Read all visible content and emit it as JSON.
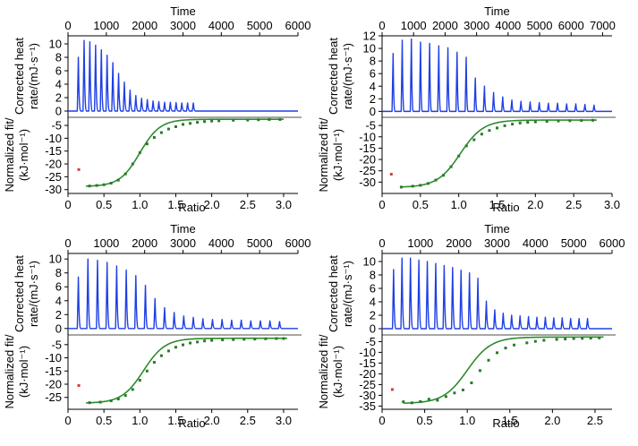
{
  "chart_data": [
    {
      "type": "line",
      "panel": "top-left",
      "top_axis_title": "Time",
      "time_ticks": [
        0,
        1000,
        2000,
        3000,
        4000,
        5000,
        6000
      ],
      "time_range": [
        0,
        6000
      ],
      "upper_ylabel": [
        "Corrected heat",
        "rate/(mJ·s⁻¹)"
      ],
      "upper_ylim": [
        -0.8,
        11.2
      ],
      "upper_yticks": [
        0,
        2,
        4,
        6,
        8,
        10
      ],
      "injection_times": [
        270,
        420,
        570,
        720,
        870,
        1020,
        1170,
        1320,
        1470,
        1620,
        1770,
        1920,
        2070,
        2220,
        2370,
        2520,
        2670,
        2820,
        2970,
        3120,
        3270
      ],
      "peak_heights": [
        8.0,
        10.5,
        10.3,
        9.8,
        9.1,
        8.3,
        7.2,
        5.6,
        4.3,
        3.1,
        2.3,
        1.9,
        1.7,
        1.5,
        1.4,
        1.3,
        1.3,
        1.25,
        1.2,
        1.2,
        1.2
      ],
      "lower_ylabel": [
        "Normalized fit/",
        "(kJ·mol⁻¹)"
      ],
      "lower_ylim": [
        -31.5,
        -1.5
      ],
      "lower_yticks": [
        -30,
        -25,
        -20,
        -15,
        -10,
        -5
      ],
      "xlabel": "Ratio",
      "xlim": [
        0,
        3.2
      ],
      "xticks": [
        0,
        0.5,
        1.0,
        1.5,
        2.0,
        2.5,
        3.0
      ],
      "first_point": {
        "x": 0.15,
        "y": -22.2
      },
      "fit": {
        "low": -28.8,
        "high": -2.6,
        "mid": 1.0,
        "width": 0.14
      },
      "data_points": [
        [
          0.3,
          -28.6
        ],
        [
          0.4,
          -28.4
        ],
        [
          0.5,
          -28.1
        ],
        [
          0.6,
          -27.5
        ],
        [
          0.7,
          -26.3
        ],
        [
          0.8,
          -23.9
        ],
        [
          0.9,
          -20.0
        ],
        [
          1.0,
          -15.6
        ],
        [
          1.1,
          -12.2
        ],
        [
          1.2,
          -9.7
        ],
        [
          1.3,
          -7.8
        ],
        [
          1.4,
          -6.4
        ],
        [
          1.5,
          -5.5
        ],
        [
          1.6,
          -4.6
        ],
        [
          1.7,
          -4.2
        ],
        [
          1.8,
          -3.8
        ],
        [
          1.9,
          -3.5
        ],
        [
          2.0,
          -3.3
        ],
        [
          2.1,
          -3.2
        ],
        [
          2.3,
          -3.0
        ],
        [
          2.5,
          -2.9
        ],
        [
          2.65,
          -2.8
        ],
        [
          2.8,
          -2.7
        ],
        [
          2.95,
          -2.7
        ]
      ]
    },
    {
      "type": "line",
      "panel": "top-right",
      "top_axis_title": "Time",
      "time_ticks": [
        0,
        1000,
        2000,
        3000,
        4000,
        5000,
        6000,
        7000
      ],
      "time_range": [
        0,
        7300
      ],
      "upper_ylabel": [
        "Corrected heat",
        "rate/(mJ·s⁻¹)"
      ],
      "upper_ylim": [
        -0.8,
        12.0
      ],
      "upper_yticks": [
        0,
        2,
        4,
        6,
        8,
        10,
        12
      ],
      "injection_times": [
        350,
        640,
        930,
        1220,
        1510,
        1800,
        2090,
        2380,
        2670,
        2960,
        3250,
        3540,
        3830,
        4120,
        4410,
        4700,
        4990,
        5280,
        5570,
        5860,
        6150,
        6440,
        6730
      ],
      "peak_heights": [
        9.2,
        11.3,
        11.5,
        11.0,
        10.8,
        10.4,
        10.1,
        9.4,
        8.6,
        5.3,
        4.0,
        3.0,
        2.3,
        1.8,
        1.6,
        1.5,
        1.4,
        1.3,
        1.3,
        1.2,
        1.2,
        1.1,
        1.0
      ],
      "lower_ylabel": [
        "Normalized fit/",
        "(kJ·mol⁻¹)"
      ],
      "lower_ylim": [
        -35,
        -1
      ],
      "lower_yticks": [
        -30,
        -25,
        -20,
        -15,
        -10,
        -5
      ],
      "xlabel": "Ratio",
      "xlim": [
        0,
        3.0
      ],
      "xticks": [
        0,
        0.5,
        1.0,
        1.5,
        2.0,
        2.5,
        3.0
      ],
      "first_point": {
        "x": 0.12,
        "y": -26.5
      },
      "fit": {
        "low": -32.3,
        "high": -2.6,
        "mid": 1.02,
        "width": 0.15
      },
      "data_points": [
        [
          0.25,
          -32.2
        ],
        [
          0.4,
          -31.8
        ],
        [
          0.5,
          -31.4
        ],
        [
          0.6,
          -30.6
        ],
        [
          0.7,
          -29.1
        ],
        [
          0.8,
          -27.0
        ],
        [
          0.9,
          -23.2
        ],
        [
          1.0,
          -18.5
        ],
        [
          1.1,
          -14.0
        ],
        [
          1.2,
          -11.3
        ],
        [
          1.3,
          -8.8
        ],
        [
          1.4,
          -7.2
        ],
        [
          1.5,
          -6.1
        ],
        [
          1.6,
          -5.1
        ],
        [
          1.7,
          -4.4
        ],
        [
          1.8,
          -3.9
        ],
        [
          1.9,
          -3.6
        ],
        [
          2.0,
          -3.4
        ],
        [
          2.15,
          -3.2
        ],
        [
          2.3,
          -3.0
        ],
        [
          2.45,
          -2.9
        ],
        [
          2.6,
          -2.8
        ],
        [
          2.75,
          -2.7
        ]
      ]
    },
    {
      "type": "line",
      "panel": "bottom-left",
      "top_axis_title": "Time",
      "time_ticks": [
        0,
        1000,
        2000,
        3000,
        4000,
        5000,
        6000
      ],
      "time_range": [
        0,
        6000
      ],
      "upper_ylabel": [
        "Corrected heat",
        "rate/(mJ·s⁻¹)"
      ],
      "upper_ylim": [
        -0.8,
        10.8
      ],
      "upper_yticks": [
        0,
        2,
        4,
        6,
        8,
        10
      ],
      "injection_times": [
        270,
        520,
        770,
        1020,
        1270,
        1520,
        1770,
        2020,
        2270,
        2520,
        2770,
        3020,
        3270,
        3520,
        3770,
        4020,
        4270,
        4520,
        4770,
        5020,
        5270,
        5520
      ],
      "peak_heights": [
        7.4,
        10.0,
        9.8,
        9.5,
        9.0,
        8.4,
        7.6,
        6.2,
        4.3,
        3.0,
        2.3,
        1.8,
        1.6,
        1.4,
        1.3,
        1.3,
        1.2,
        1.2,
        1.1,
        1.1,
        1.1,
        1.0
      ],
      "lower_ylabel": [
        "Normalized fit/",
        "(kJ·mol⁻¹)"
      ],
      "lower_ylim": [
        -29.5,
        -1.0
      ],
      "lower_yticks": [
        -25,
        -20,
        -15,
        -10,
        -5
      ],
      "xlabel": "Ratio",
      "xlim": [
        0,
        3.2
      ],
      "xticks": [
        0,
        0.5,
        1.0,
        1.5,
        2.0,
        2.5,
        3.0
      ],
      "first_point": {
        "x": 0.15,
        "y": -20.5
      },
      "fit": {
        "low": -27.2,
        "high": -2.6,
        "mid": 1.05,
        "width": 0.15
      },
      "data_points": [
        [
          0.3,
          -27.0
        ],
        [
          0.45,
          -26.8
        ],
        [
          0.6,
          -26.3
        ],
        [
          0.7,
          -25.6
        ],
        [
          0.8,
          -24.3
        ],
        [
          0.9,
          -22.0
        ],
        [
          1.0,
          -18.5
        ],
        [
          1.1,
          -15.0
        ],
        [
          1.2,
          -11.7
        ],
        [
          1.3,
          -9.2
        ],
        [
          1.4,
          -7.4
        ],
        [
          1.5,
          -6.0
        ],
        [
          1.6,
          -5.1
        ],
        [
          1.7,
          -4.4
        ],
        [
          1.8,
          -4.0
        ],
        [
          1.9,
          -3.6
        ],
        [
          2.0,
          -3.4
        ],
        [
          2.15,
          -3.2
        ],
        [
          2.3,
          -3.1
        ],
        [
          2.45,
          -3.0
        ],
        [
          2.6,
          -2.9
        ],
        [
          2.75,
          -2.8
        ],
        [
          2.9,
          -2.7
        ],
        [
          3.0,
          -2.7
        ]
      ]
    },
    {
      "type": "line",
      "panel": "bottom-right",
      "top_axis_title": "Time",
      "time_ticks": [
        0,
        1000,
        2000,
        3000,
        4000,
        5000,
        6000
      ],
      "time_range": [
        0,
        6000
      ],
      "upper_ylabel": [
        "Corrected heat",
        "rate/(mJ·s⁻¹)"
      ],
      "upper_ylim": [
        -0.8,
        11.2
      ],
      "upper_yticks": [
        0,
        2,
        4,
        6,
        8,
        10
      ],
      "injection_times": [
        300,
        520,
        740,
        960,
        1180,
        1400,
        1620,
        1840,
        2060,
        2280,
        2500,
        2720,
        2940,
        3160,
        3380,
        3600,
        3820,
        4040,
        4260,
        4480,
        4700,
        4920,
        5140,
        5360
      ],
      "peak_heights": [
        8.8,
        10.5,
        10.5,
        10.2,
        10.0,
        9.7,
        9.4,
        9.1,
        8.7,
        8.3,
        7.5,
        4.1,
        2.8,
        2.3,
        2.0,
        1.9,
        1.8,
        1.7,
        1.7,
        1.6,
        1.6,
        1.5,
        1.5,
        1.5
      ],
      "lower_ylabel": [
        "Normalized fit/",
        "(kJ·mol⁻¹)"
      ],
      "lower_ylim": [
        -36.5,
        -1.5
      ],
      "lower_yticks": [
        -35,
        -30,
        -25,
        -20,
        -15,
        -10,
        -5
      ],
      "xlabel": "Ratio",
      "xlim": [
        0,
        2.7
      ],
      "xticks": [
        0,
        0.5,
        1.0,
        1.5,
        2.0,
        2.5
      ],
      "first_point": {
        "x": 0.12,
        "y": -27.3
      },
      "fit": {
        "low": -33.8,
        "high": -2.9,
        "mid": 1.0,
        "width": 0.14
      },
      "data_points": [
        [
          0.25,
          -33.0
        ],
        [
          0.35,
          -33.5
        ],
        [
          0.45,
          -32.9
        ],
        [
          0.55,
          -31.8
        ],
        [
          0.65,
          -32.3
        ],
        [
          0.75,
          -30.6
        ],
        [
          0.85,
          -28.9
        ],
        [
          0.95,
          -27.5
        ],
        [
          1.05,
          -24.2
        ],
        [
          1.15,
          -18.5
        ],
        [
          1.25,
          -13.7
        ],
        [
          1.35,
          -10.2
        ],
        [
          1.45,
          -8.0
        ],
        [
          1.55,
          -6.6
        ],
        [
          1.7,
          -5.6
        ],
        [
          1.8,
          -4.9
        ],
        [
          1.9,
          -4.4
        ],
        [
          2.05,
          -4.0
        ],
        [
          2.15,
          -3.8
        ],
        [
          2.25,
          -3.6
        ],
        [
          2.35,
          -3.5
        ],
        [
          2.45,
          -3.4
        ],
        [
          2.55,
          -3.3
        ]
      ]
    }
  ],
  "colors": {
    "thermogram": "#1f3fe6",
    "fit_line": "#2e8b2e",
    "points": "#2a7a2a",
    "first_point": "#d43b3b",
    "axis": "#000000",
    "separator": "#a6a6a6"
  }
}
